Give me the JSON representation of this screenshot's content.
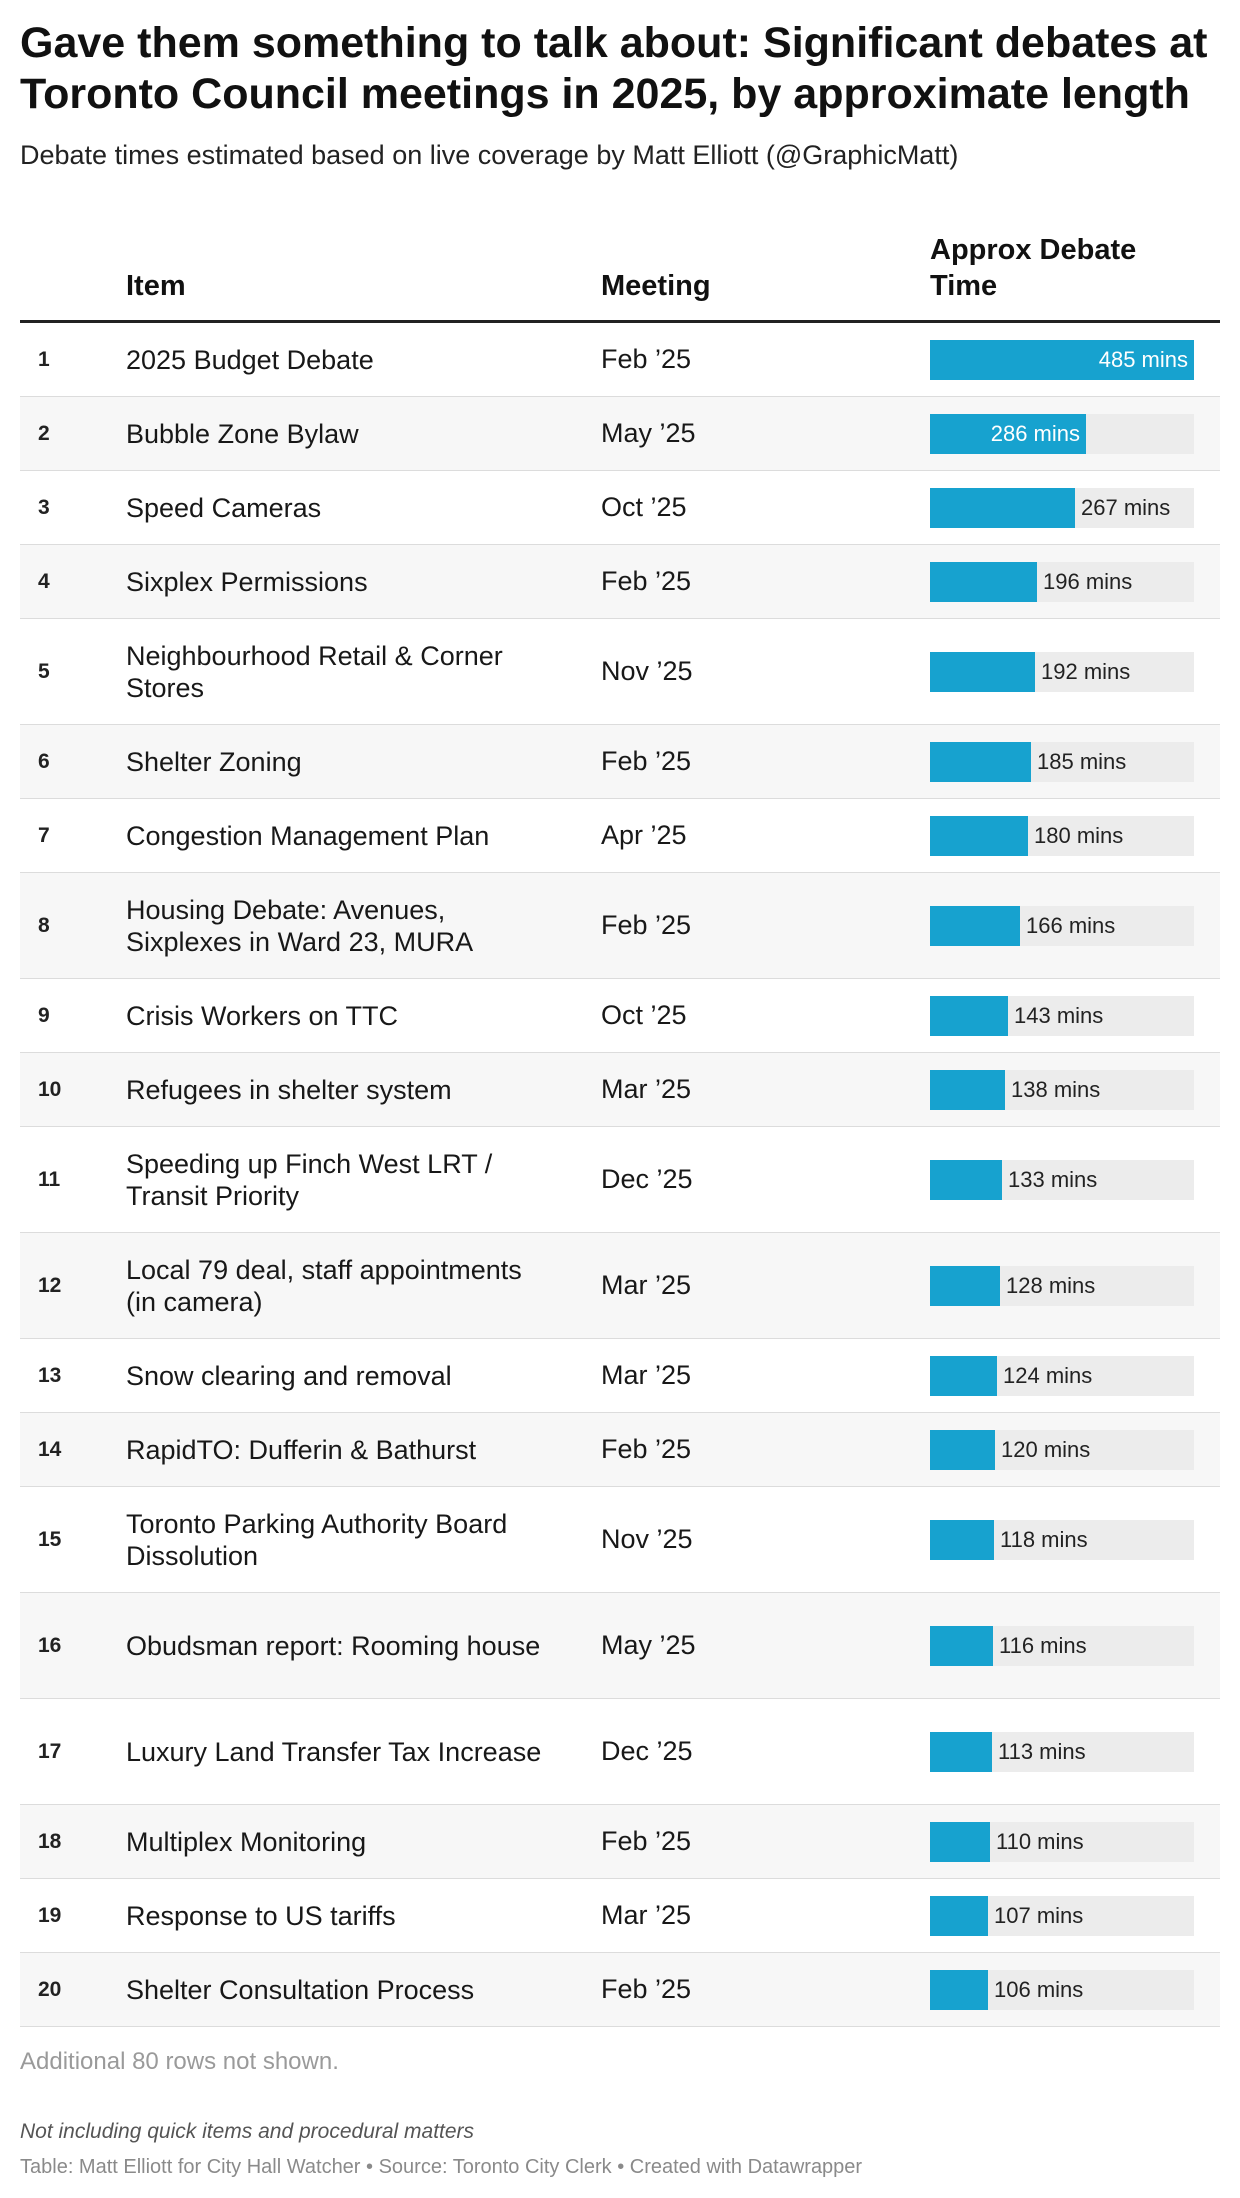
{
  "title": "Gave them something to talk about: Significant debates at Toronto Council meetings in 2025, by approximate length",
  "subtitle": "Debate times estimated based on live coverage by Matt Elliott (@GraphicMatt)",
  "columns": {
    "item": "Item",
    "meeting": "Meeting",
    "time": "Approx Debate Time"
  },
  "more_rows": "Additional 80 rows not shown.",
  "notes": "Not including quick items and procedural matters",
  "credit": "Table: Matt Elliott for City Hall Watcher • Source: Toronto City Clerk • Created with Datawrapper",
  "colors": {
    "bar": "#17a2cf",
    "track": "#ececec"
  },
  "chart_data": {
    "type": "table",
    "bar_max": 485,
    "rows": [
      {
        "rank": "1",
        "item": "2025 Budget Debate",
        "meeting": "Feb ’25",
        "value": 485,
        "label": "485 mins"
      },
      {
        "rank": "2",
        "item": "Bubble Zone Bylaw",
        "meeting": "May ’25",
        "value": 286,
        "label": "286 mins"
      },
      {
        "rank": "3",
        "item": "Speed Cameras",
        "meeting": "Oct ’25",
        "value": 267,
        "label": "267 mins"
      },
      {
        "rank": "4",
        "item": "Sixplex Permissions",
        "meeting": "Feb ’25",
        "value": 196,
        "label": "196 mins"
      },
      {
        "rank": "5",
        "item": "Neighbourhood Retail & Corner Stores",
        "meeting": "Nov ’25",
        "value": 192,
        "label": "192 mins"
      },
      {
        "rank": "6",
        "item": "Shelter Zoning",
        "meeting": "Feb ’25",
        "value": 185,
        "label": "185 mins"
      },
      {
        "rank": "7",
        "item": "Congestion Management Plan",
        "meeting": "Apr ’25",
        "value": 180,
        "label": "180 mins"
      },
      {
        "rank": "8",
        "item": "Housing Debate: Avenues, Sixplexes in Ward 23, MURA",
        "meeting": "Feb ’25",
        "value": 166,
        "label": "166 mins"
      },
      {
        "rank": "9",
        "item": "Crisis Workers on TTC",
        "meeting": "Oct ’25",
        "value": 143,
        "label": "143 mins"
      },
      {
        "rank": "10",
        "item": "Refugees in shelter system",
        "meeting": "Mar ’25",
        "value": 138,
        "label": "138 mins"
      },
      {
        "rank": "11",
        "item": "Speeding up Finch West LRT / Transit Priority",
        "meeting": "Dec ’25",
        "value": 133,
        "label": "133 mins"
      },
      {
        "rank": "12",
        "item": "Local 79 deal, staff appointments (in camera)",
        "meeting": "Mar ’25",
        "value": 128,
        "label": "128 mins"
      },
      {
        "rank": "13",
        "item": "Snow clearing and removal",
        "meeting": "Mar ’25",
        "value": 124,
        "label": "124 mins"
      },
      {
        "rank": "14",
        "item": "RapidTO: Dufferin & Bathurst",
        "meeting": "Feb ’25",
        "value": 120,
        "label": "120 mins"
      },
      {
        "rank": "15",
        "item": "Toronto Parking Authority Board Dissolution",
        "meeting": "Nov ’25",
        "value": 118,
        "label": "118 mins"
      },
      {
        "rank": "16",
        "item": "Obudsman report: Rooming house",
        "meeting": "May ’25",
        "value": 116,
        "label": "116 mins"
      },
      {
        "rank": "17",
        "item": "Luxury Land Transfer Tax Increase",
        "meeting": "Dec ’25",
        "value": 113,
        "label": "113 mins"
      },
      {
        "rank": "18",
        "item": "Multiplex Monitoring",
        "meeting": "Feb ’25",
        "value": 110,
        "label": "110 mins"
      },
      {
        "rank": "19",
        "item": "Response to US tariffs",
        "meeting": "Mar ’25",
        "value": 107,
        "label": "107 mins"
      },
      {
        "rank": "20",
        "item": "Shelter Consultation Process",
        "meeting": "Feb ’25",
        "value": 106,
        "label": "106 mins"
      }
    ]
  }
}
